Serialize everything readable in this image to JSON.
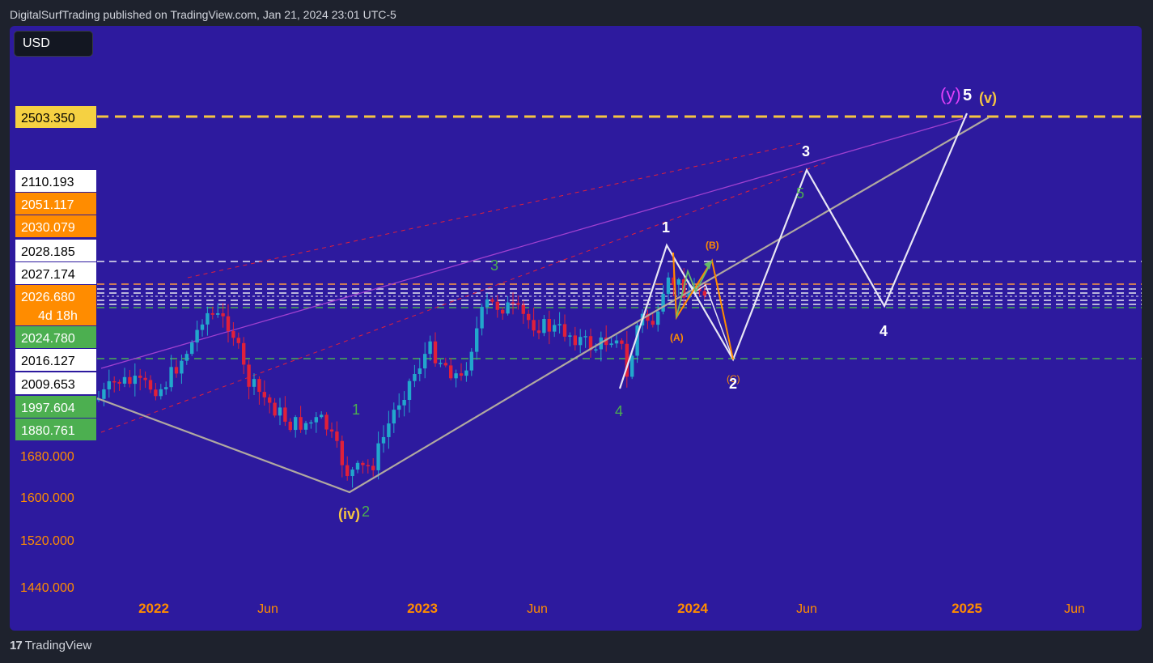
{
  "header": {
    "publisher_line": "DigitalSurfTrading published on TradingView.com, Jan 21, 2024 23:01 UTC-5"
  },
  "toolbar": {
    "currency": "USD"
  },
  "footer": {
    "brand": "TradingView"
  },
  "colors": {
    "background": "#2d1a9e",
    "bull": "#22a7cc",
    "bear": "#e0203a",
    "target_line": "#f5c542",
    "accent_orange": "#ff8c00",
    "green": "#4caf50",
    "white": "#ffffff"
  },
  "chart_data": {
    "type": "candlestick",
    "symbol_quote": "USD",
    "x_tick_labels": [
      "2022",
      "Jun",
      "2023",
      "Jun",
      "2024",
      "Jun",
      "2025",
      "Jun"
    ],
    "y_tick_labels": [
      "1680.000",
      "1600.000",
      "1520.000",
      "1440.000"
    ],
    "price_tags": [
      {
        "value": "2503.350",
        "bg": "#f5d142",
        "fg": "#000000"
      },
      {
        "value": "2110.193",
        "bg": "#ffffff",
        "fg": "#000000"
      },
      {
        "value": "2051.117",
        "bg": "#ff8c00",
        "fg": "#ffffff"
      },
      {
        "value": "2030.079",
        "bg": "#ff8c00",
        "fg": "#ffffff"
      },
      {
        "value": "2028.185",
        "bg": "#ffffff",
        "fg": "#000000"
      },
      {
        "value": "2027.174",
        "bg": "#ffffff",
        "fg": "#000000"
      },
      {
        "value": "2026.680",
        "bg": "#ff8c00",
        "fg": "#ffffff",
        "sub": "4d 18h"
      },
      {
        "value": "2024.780",
        "bg": "#4caf50",
        "fg": "#ffffff"
      },
      {
        "value": "2016.127",
        "bg": "#ffffff",
        "fg": "#000000"
      },
      {
        "value": "2009.653",
        "bg": "#ffffff",
        "fg": "#000000"
      },
      {
        "value": "1997.604",
        "bg": "#4caf50",
        "fg": "#ffffff"
      },
      {
        "value": "1880.761",
        "bg": "#4caf50",
        "fg": "#ffffff"
      }
    ],
    "wave_labels": [
      {
        "text": "(y)",
        "color": "#e040fb"
      },
      {
        "text": "5",
        "color": "#ffffff"
      },
      {
        "text": "(v)",
        "color": "#f5c542"
      },
      {
        "text": "3",
        "color": "#ffffff"
      },
      {
        "text": "5",
        "color": "#4caf50"
      },
      {
        "text": "1",
        "color": "#ffffff"
      },
      {
        "text": "(B)",
        "color": "#ff8c00"
      },
      {
        "text": "(A)",
        "color": "#ff8c00"
      },
      {
        "text": "(C)",
        "color": "#ff8c00"
      },
      {
        "text": "2",
        "color": "#ffffff"
      },
      {
        "text": "4",
        "color": "#ffffff"
      },
      {
        "text": "3",
        "color": "#4caf50"
      },
      {
        "text": "4",
        "color": "#4caf50"
      },
      {
        "text": "1",
        "color": "#4caf50"
      },
      {
        "text": "(iv)",
        "color": "#f5c542"
      },
      {
        "text": "2",
        "color": "#4caf50"
      }
    ],
    "wave_path_points": [
      {
        "date": "2021-12",
        "price": 1800
      },
      {
        "date": "2022-09",
        "price": 1618
      },
      {
        "date": "2023-05",
        "price": 2080
      },
      {
        "date": "2023-10",
        "price": 1810
      },
      {
        "date": "2024-12",
        "price": 2503.35
      }
    ],
    "projection_points": [
      {
        "date": "2023-10",
        "price": 1810
      },
      {
        "date": "2023-12",
        "price": 2150
      },
      {
        "date": "2024-02",
        "price": 1880
      },
      {
        "date": "2024-06",
        "price": 2260
      },
      {
        "date": "2024-09",
        "price": 1985
      },
      {
        "date": "2024-12",
        "price": 2503.35
      }
    ],
    "grid": false
  }
}
